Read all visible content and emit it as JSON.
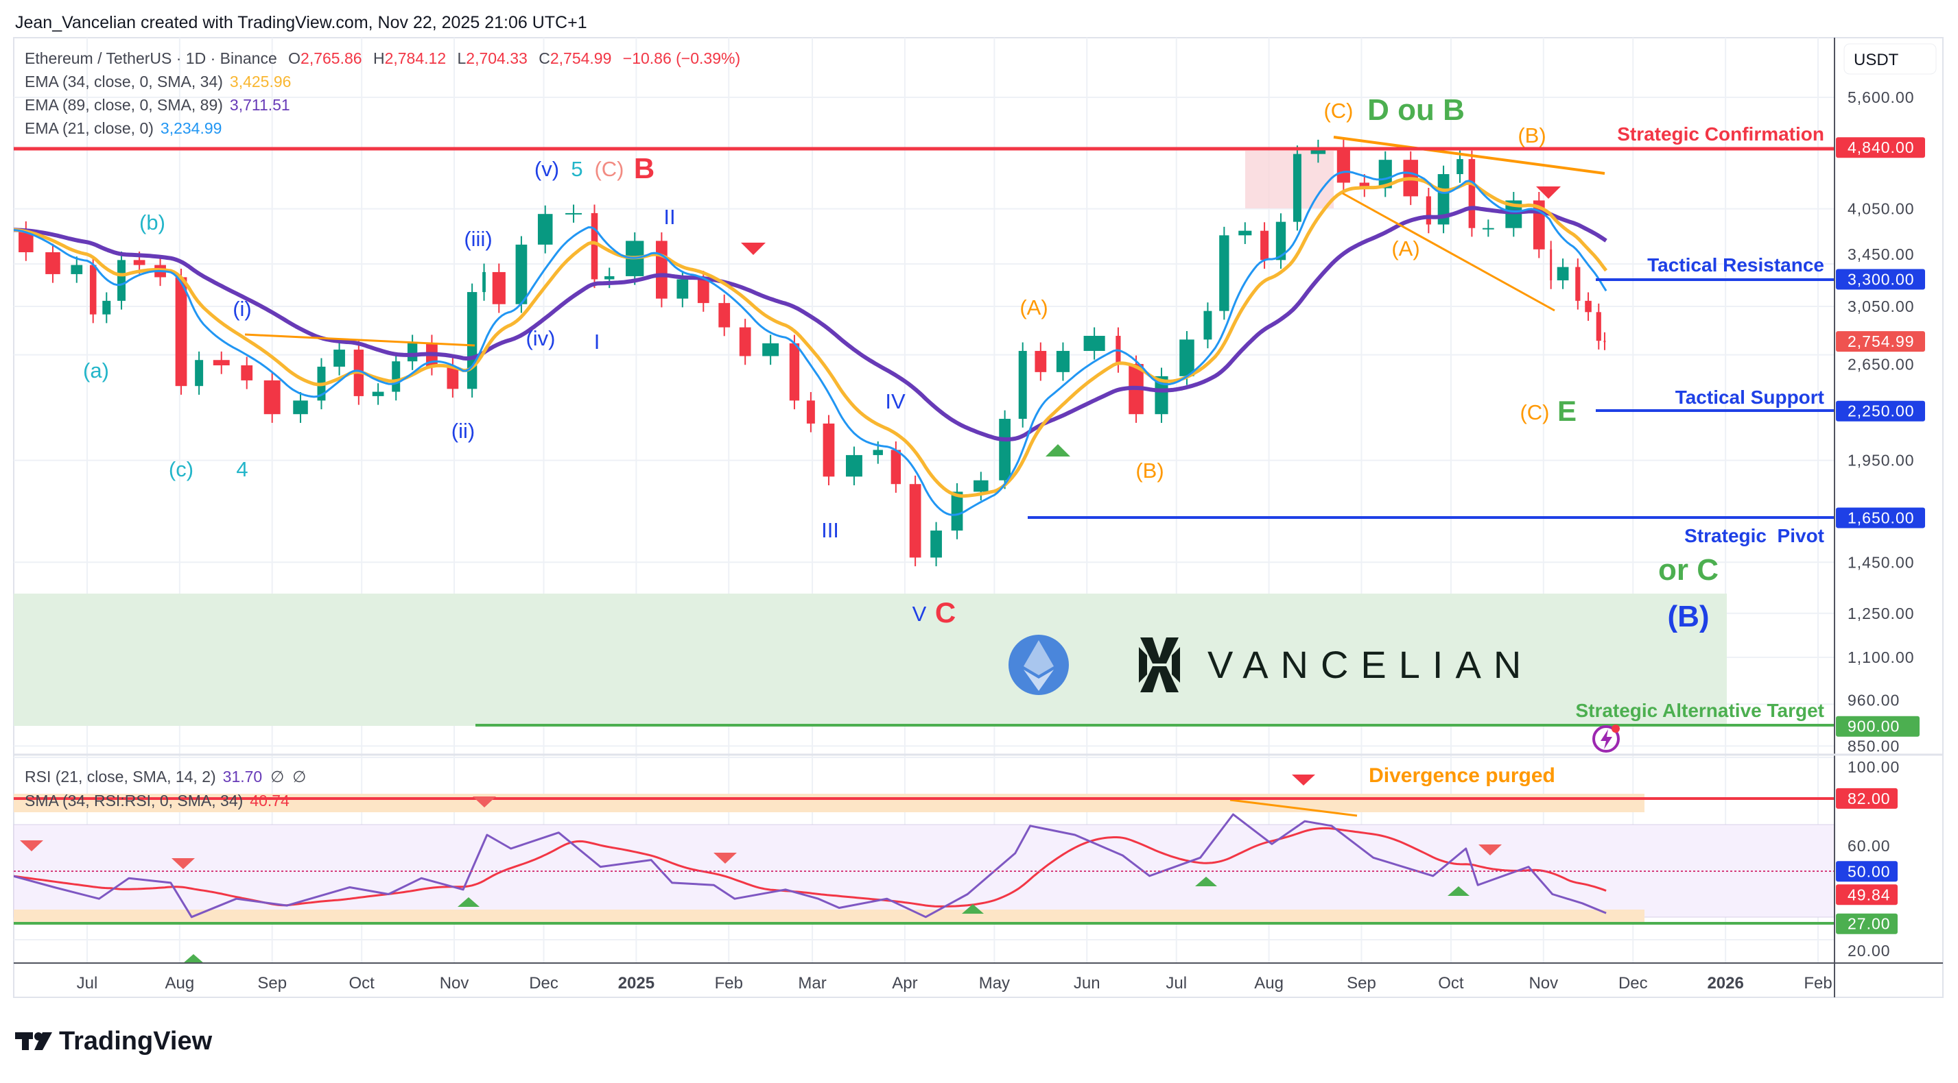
{
  "header": {
    "attribution": "Jean_Vancelian created with TradingView.com, Nov 22, 2025 21:06 UTC+1"
  },
  "legend": {
    "symbol": "Ethereum / TetherUS · 1D · Binance",
    "o_label": "O",
    "o": "2,765.86",
    "h_label": "H",
    "h": "2,784.12",
    "l_label": "L",
    "l": "2,704.33",
    "c_label": "C",
    "c": "2,754.99",
    "change": "−10.86 (−0.39%)",
    "ema34_label": "EMA (34, close, 0, SMA, 34)",
    "ema34": "3,425.96",
    "ema89_label": "EMA (89, close, 0, SMA, 89)",
    "ema89": "3,711.51",
    "ema21_label": "EMA (21, close, 0)",
    "ema21": "3,234.99"
  },
  "rsi_legend": {
    "rsi_label": "RSI (21, close, SMA, 14, 2)",
    "rsi": "31.70",
    "na1": "∅",
    "na2": "∅",
    "sma_label": "SMA (34, RSI:RSI, 0, SMA, 34)",
    "sma": "40.74"
  },
  "price_axis": {
    "currency": "USDT",
    "ticks": [
      "5,600.00",
      "4,050.00",
      "3,450.00",
      "3,050.00",
      "2,650.00",
      "1,950.00",
      "1,450.00",
      "1,250.00",
      "1,100.00",
      "960.00",
      "850.00"
    ],
    "last_price": "2,754.99"
  },
  "rsi_axis": {
    "ticks": [
      "100.00",
      "60.00",
      "20.00"
    ],
    "badges": [
      "82.00",
      "50.00",
      "49.84",
      "27.00"
    ]
  },
  "levels": [
    {
      "label": "Strategic Confirmation",
      "value": "4,840.00",
      "color": "#f23645"
    },
    {
      "label": "Tactical Resistance",
      "value": "3,300.00",
      "color": "#1e40e6"
    },
    {
      "label": "Tactical Support",
      "value": "2,250.00",
      "color": "#1e40e6"
    },
    {
      "label": "Strategic  Pivot",
      "value": "1,650.00",
      "color": "#1e40e6"
    },
    {
      "label": "Strategic Alternative Target",
      "value": "900.00",
      "color": "#4caf50"
    }
  ],
  "annotations": [
    "(b)",
    "(a)",
    "(c)",
    "4",
    "(i)",
    "(ii)",
    "(iii)",
    "(iv)",
    "(v)",
    "5",
    "(C)",
    "B",
    "II",
    "I",
    "IV",
    "III",
    "V",
    "C",
    "(A)",
    "(B)",
    "(C)",
    "D ou B",
    "(B)",
    "(A)",
    "(C)",
    "E",
    "or C",
    "(B)",
    "Divergence purged"
  ],
  "time_axis": {
    "labels": [
      "Jul",
      "Aug",
      "Sep",
      "Oct",
      "Nov",
      "Dec",
      "2025",
      "Feb",
      "Mar",
      "Apr",
      "May",
      "Jun",
      "Jul",
      "Aug",
      "Sep",
      "Oct",
      "Nov",
      "Dec",
      "2026",
      "Feb"
    ]
  },
  "logo": {
    "text": "VANCELIAN"
  },
  "footer": {
    "brand": "TradingView"
  },
  "colors": {
    "up": "#089981",
    "down": "#f23645",
    "ema21": "#2196f3",
    "ema34": "#f9b630",
    "ema89": "#673ab7",
    "rsi": "#7e57c2",
    "rsi_sma": "#f23645",
    "zone": "#e1f0e1"
  },
  "chart_data": {
    "type": "line",
    "scale": "log",
    "ylim": [
      850,
      5600
    ],
    "grid": true,
    "series": [
      {
        "name": "Ethereum / TetherUS",
        "points": [
          [
            "2024-06-06",
            3810
          ],
          [
            "2024-06-15",
            3570
          ],
          [
            "2024-06-24",
            3350
          ],
          [
            "2024-07-01",
            3440
          ],
          [
            "2024-07-05",
            2980
          ],
          [
            "2024-07-10",
            3100
          ],
          [
            "2024-07-15",
            3490
          ],
          [
            "2024-07-22",
            3440
          ],
          [
            "2024-07-29",
            3320
          ],
          [
            "2024-08-05",
            2420
          ],
          [
            "2024-08-10",
            2610
          ],
          [
            "2024-08-20",
            2570
          ],
          [
            "2024-08-27",
            2460
          ],
          [
            "2024-09-06",
            2230
          ],
          [
            "2024-09-15",
            2320
          ],
          [
            "2024-09-20",
            2560
          ],
          [
            "2024-09-27",
            2690
          ],
          [
            "2024-10-03",
            2350
          ],
          [
            "2024-10-10",
            2380
          ],
          [
            "2024-10-15",
            2600
          ],
          [
            "2024-10-21",
            2740
          ],
          [
            "2024-10-28",
            2560
          ],
          [
            "2024-11-04",
            2400
          ],
          [
            "2024-11-10",
            3180
          ],
          [
            "2024-11-12",
            3370
          ],
          [
            "2024-11-20",
            3070
          ],
          [
            "2024-11-27",
            3650
          ],
          [
            "2024-12-06",
            3990
          ],
          [
            "2024-12-16",
            4000
          ],
          [
            "2024-12-20",
            3300
          ],
          [
            "2024-12-26",
            3330
          ],
          [
            "2025-01-06",
            3690
          ],
          [
            "2025-01-13",
            3120
          ],
          [
            "2025-01-20",
            3300
          ],
          [
            "2025-01-27",
            3080
          ],
          [
            "2025-02-03",
            2870
          ],
          [
            "2025-02-10",
            2640
          ],
          [
            "2025-02-20",
            2740
          ],
          [
            "2025-02-26",
            2320
          ],
          [
            "2025-03-03",
            2170
          ],
          [
            "2025-03-10",
            1860
          ],
          [
            "2025-03-20",
            1980
          ],
          [
            "2025-03-26",
            2010
          ],
          [
            "2025-04-01",
            1820
          ],
          [
            "2025-04-08",
            1470
          ],
          [
            "2025-04-15",
            1590
          ],
          [
            "2025-04-22",
            1780
          ],
          [
            "2025-05-01",
            1840
          ],
          [
            "2025-05-08",
            2200
          ],
          [
            "2025-05-13",
            2680
          ],
          [
            "2025-05-20",
            2520
          ],
          [
            "2025-05-28",
            2680
          ],
          [
            "2025-06-10",
            2800
          ],
          [
            "2025-06-13",
            2580
          ],
          [
            "2025-06-22",
            2230
          ],
          [
            "2025-06-30",
            2490
          ],
          [
            "2025-07-09",
            2770
          ],
          [
            "2025-07-14",
            3010
          ],
          [
            "2025-07-20",
            3750
          ],
          [
            "2025-07-28",
            3800
          ],
          [
            "2025-08-02",
            3490
          ],
          [
            "2025-08-08",
            3900
          ],
          [
            "2025-08-13",
            4750
          ],
          [
            "2025-08-22",
            4830
          ],
          [
            "2025-08-30",
            4370
          ],
          [
            "2025-09-05",
            4300
          ],
          [
            "2025-09-13",
            4670
          ],
          [
            "2025-09-22",
            4200
          ],
          [
            "2025-09-25",
            3870
          ],
          [
            "2025-10-02",
            4480
          ],
          [
            "2025-10-06",
            4680
          ],
          [
            "2025-10-10",
            3830
          ],
          [
            "2025-10-17",
            3830
          ],
          [
            "2025-10-27",
            4150
          ],
          [
            "2025-11-03",
            3600
          ],
          [
            "2025-11-04",
            3290
          ],
          [
            "2025-11-11",
            3420
          ],
          [
            "2025-11-14",
            3100
          ],
          [
            "2025-11-18",
            3000
          ],
          [
            "2025-11-21",
            2760
          ],
          [
            "2025-11-22",
            2754.99
          ]
        ]
      }
    ],
    "rsi": {
      "ylim": [
        20,
        100
      ],
      "points": [
        [
          "2024-06-06",
          48
        ],
        [
          "2024-06-20",
          43
        ],
        [
          "2024-07-05",
          38
        ],
        [
          "2024-07-15",
          47
        ],
        [
          "2024-07-29",
          45
        ],
        [
          "2024-08-05",
          30
        ],
        [
          "2024-08-20",
          38
        ],
        [
          "2024-09-06",
          35
        ],
        [
          "2024-09-27",
          43
        ],
        [
          "2024-10-10",
          40
        ],
        [
          "2024-10-21",
          47
        ],
        [
          "2024-11-04",
          42
        ],
        [
          "2024-11-12",
          66
        ],
        [
          "2024-11-20",
          60
        ],
        [
          "2024-12-06",
          67
        ],
        [
          "2024-12-20",
          52
        ],
        [
          "2025-01-06",
          55
        ],
        [
          "2025-01-13",
          45
        ],
        [
          "2025-01-27",
          44
        ],
        [
          "2025-02-03",
          38
        ],
        [
          "2025-02-20",
          42
        ],
        [
          "2025-03-03",
          38
        ],
        [
          "2025-03-10",
          34
        ],
        [
          "2025-03-26",
          38
        ],
        [
          "2025-04-08",
          30
        ],
        [
          "2025-04-22",
          40
        ],
        [
          "2025-05-08",
          58
        ],
        [
          "2025-05-13",
          70
        ],
        [
          "2025-05-28",
          66
        ],
        [
          "2025-06-13",
          57
        ],
        [
          "2025-06-22",
          48
        ],
        [
          "2025-07-09",
          56
        ],
        [
          "2025-07-20",
          75
        ],
        [
          "2025-08-02",
          62
        ],
        [
          "2025-08-13",
          72
        ],
        [
          "2025-08-22",
          70
        ],
        [
          "2025-09-05",
          56
        ],
        [
          "2025-09-25",
          48
        ],
        [
          "2025-10-06",
          60
        ],
        [
          "2025-10-10",
          44
        ],
        [
          "2025-10-27",
          52
        ],
        [
          "2025-11-04",
          40
        ],
        [
          "2025-11-14",
          36
        ],
        [
          "2025-11-22",
          31.7
        ]
      ]
    },
    "levels": [
      4840,
      3300,
      2250,
      1650,
      900
    ],
    "rsi_levels": [
      82,
      50,
      27
    ]
  }
}
